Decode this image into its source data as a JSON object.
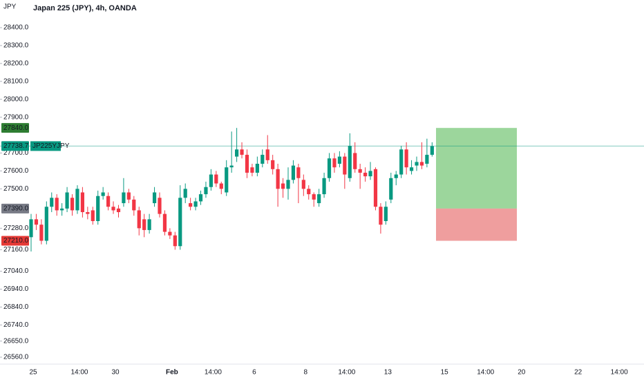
{
  "chart_data": {
    "type": "candlestick",
    "title": "Japan 225 (JPY), 4h, OANDA",
    "currency": "JPY",
    "symbol": "JP225YJPY",
    "last_price": 27738.7,
    "up_color": "#089981",
    "down_color": "#f23645",
    "ylim": [
      26560,
      28400
    ],
    "yticks": [
      {
        "value": 28400,
        "label": "28400.0"
      },
      {
        "value": 28300,
        "label": "28300.0"
      },
      {
        "value": 28200,
        "label": "28200.0"
      },
      {
        "value": 28100,
        "label": "28100.0"
      },
      {
        "value": 28000,
        "label": "28000.0"
      },
      {
        "value": 27900,
        "label": "27900.0"
      },
      {
        "value": 27700,
        "label": "27700.0"
      },
      {
        "value": 27600,
        "label": "27600.0"
      },
      {
        "value": 27500,
        "label": "27500.0"
      },
      {
        "value": 27280,
        "label": "27280.0"
      },
      {
        "value": 27160,
        "label": "27160.0"
      },
      {
        "value": 27040,
        "label": "27040.0"
      },
      {
        "value": 26940,
        "label": "26940.0"
      },
      {
        "value": 26840,
        "label": "26840.0"
      },
      {
        "value": 26740,
        "label": "26740.0"
      },
      {
        "value": 26650,
        "label": "26650.0"
      },
      {
        "value": 26560,
        "label": "26560.0"
      }
    ],
    "position": {
      "target": {
        "value": 27840,
        "label": "27840.0"
      },
      "entry": {
        "value": 27390,
        "label": "27390.0"
      },
      "stop": {
        "value": 27210,
        "label": "27210.0"
      }
    },
    "categories": [
      "25",
      null,
      null,
      null,
      null,
      null,
      null,
      null,
      null,
      "14:00",
      null,
      null,
      null,
      null,
      null,
      null,
      "30",
      null,
      null,
      null,
      null,
      null,
      null,
      null,
      null,
      null,
      null,
      "Feb",
      null,
      null,
      null,
      null,
      null,
      null,
      null,
      "14:00",
      null,
      null,
      null,
      null,
      null,
      null,
      null,
      "6",
      null,
      null,
      null,
      null,
      null,
      null,
      null,
      null,
      null,
      "8",
      null,
      null,
      null,
      null,
      null,
      null,
      null,
      "14:00",
      null,
      null,
      null,
      null,
      null,
      null,
      null,
      "13",
      null,
      null,
      null,
      null,
      null,
      null,
      null,
      null,
      null,
      null,
      "15",
      null,
      null,
      null,
      null,
      null,
      null,
      null,
      "14:00",
      null,
      null,
      null,
      null,
      null,
      null,
      "20",
      null,
      null,
      null,
      null,
      null,
      null,
      null,
      null,
      null,
      null,
      "22",
      null,
      null,
      null,
      null,
      null,
      null,
      null,
      "14:00",
      null,
      null,
      null
    ],
    "open": [
      27230,
      27330,
      27300,
      27210,
      27400,
      27450,
      27380,
      27390,
      27450,
      27380,
      27480,
      27370,
      27380,
      27320,
      27460,
      27460,
      27400,
      27390,
      27420,
      27480,
      27440,
      27380,
      27330,
      27270,
      27420,
      27450,
      27360,
      27260,
      27240,
      27180,
      27450,
      27420,
      27400,
      27430,
      27470,
      27510,
      27580,
      27530,
      27480,
      27620,
      27680,
      27720,
      27690,
      27620,
      27590,
      27640,
      27720,
      27660,
      27610,
      27530,
      27500,
      27550,
      27620,
      27550,
      27500,
      27470,
      27420,
      27470,
      27560,
      27670,
      27640,
      27680,
      27560,
      27700,
      27610,
      27590,
      27570,
      27610,
      27400,
      27320,
      27440,
      27560,
      27580,
      27720,
      27600,
      27630,
      27650,
      27640,
      27690,
      null,
      null,
      null,
      null,
      null,
      null,
      null,
      null,
      null,
      null,
      null,
      null,
      null,
      null,
      null,
      null,
      null,
      null,
      null,
      null,
      null,
      null,
      null,
      null,
      null,
      null,
      null,
      null,
      null,
      null,
      null,
      null,
      null,
      null,
      null,
      null,
      null,
      null,
      null
    ],
    "high": [
      27360,
      27360,
      27330,
      27430,
      27480,
      27470,
      27420,
      27510,
      27470,
      27520,
      27510,
      27400,
      27400,
      27490,
      27510,
      27480,
      27430,
      27410,
      27560,
      27500,
      27460,
      27400,
      27360,
      27360,
      27510,
      27480,
      27380,
      27280,
      27260,
      27520,
      27530,
      27450,
      27450,
      27490,
      27540,
      27610,
      27600,
      27540,
      27660,
      27820,
      27840,
      27760,
      27720,
      27640,
      27680,
      27720,
      27800,
      27690,
      27640,
      27560,
      27620,
      27660,
      27640,
      27580,
      27520,
      27480,
      27500,
      27590,
      27700,
      27700,
      27710,
      27700,
      27810,
      27760,
      27640,
      27620,
      27650,
      27620,
      27420,
      27430,
      27590,
      27600,
      27740,
      27760,
      27660,
      27680,
      27760,
      27780,
      27760,
      null,
      null,
      null,
      null,
      null,
      null,
      null,
      null,
      null,
      null,
      null,
      null,
      null,
      null,
      null,
      null,
      null,
      null,
      null,
      null,
      null,
      null,
      null,
      null,
      null,
      null,
      null,
      null,
      null,
      null,
      null,
      null,
      null,
      null,
      null,
      null,
      null,
      null,
      null
    ],
    "low": [
      27150,
      27270,
      27190,
      27190,
      27370,
      27350,
      27350,
      27370,
      27350,
      27360,
      27340,
      27330,
      27300,
      27300,
      27440,
      27380,
      27360,
      27340,
      27400,
      27420,
      27350,
      27240,
      27230,
      27250,
      27400,
      27340,
      27240,
      27220,
      27160,
      27160,
      27420,
      27380,
      27380,
      27410,
      27450,
      27490,
      27510,
      27470,
      27460,
      27590,
      27650,
      27670,
      27560,
      27570,
      27570,
      27620,
      27640,
      27580,
      27400,
      27450,
      27440,
      27530,
      27420,
      27460,
      27440,
      27400,
      27400,
      27450,
      27540,
      27590,
      27620,
      27500,
      27540,
      27590,
      27500,
      27540,
      27550,
      27380,
      27250,
      27300,
      27420,
      27520,
      27560,
      27580,
      27580,
      27600,
      27610,
      27620,
      27680,
      null,
      null,
      null,
      null,
      null,
      null,
      null,
      null,
      null,
      null,
      null,
      null,
      null,
      null,
      null,
      null,
      null,
      null,
      null,
      null,
      null,
      null,
      null,
      null,
      null,
      null,
      null,
      null,
      null,
      null,
      null,
      null,
      null,
      null,
      null,
      null,
      null,
      null,
      null
    ],
    "close": [
      27330,
      27300,
      27210,
      27400,
      27450,
      27380,
      27390,
      27480,
      27380,
      27500,
      27370,
      27360,
      27320,
      27460,
      27480,
      27400,
      27380,
      27370,
      27480,
      27440,
      27380,
      27280,
      27270,
      27330,
      27480,
      27360,
      27260,
      27240,
      27180,
      27450,
      27500,
      27400,
      27430,
      27470,
      27510,
      27580,
      27530,
      27500,
      27620,
      27630,
      27720,
      27690,
      27590,
      27590,
      27640,
      27690,
      27660,
      27610,
      27500,
      27500,
      27550,
      27630,
      27560,
      27500,
      27470,
      27440,
      27470,
      27560,
      27670,
      27620,
      27680,
      27580,
      27740,
      27610,
      27590,
      27570,
      27600,
      27400,
      27300,
      27400,
      27560,
      27580,
      27720,
      27620,
      27620,
      27650,
      27630,
      27690,
      27738.7,
      null,
      null,
      null,
      null,
      null,
      null,
      null,
      null,
      null,
      null,
      null,
      null,
      null,
      null,
      null,
      null,
      null,
      null,
      null,
      null,
      null,
      null,
      null,
      null,
      null,
      null,
      null,
      null,
      null,
      null,
      null,
      null,
      null,
      null,
      null,
      null,
      null,
      null,
      null
    ]
  }
}
